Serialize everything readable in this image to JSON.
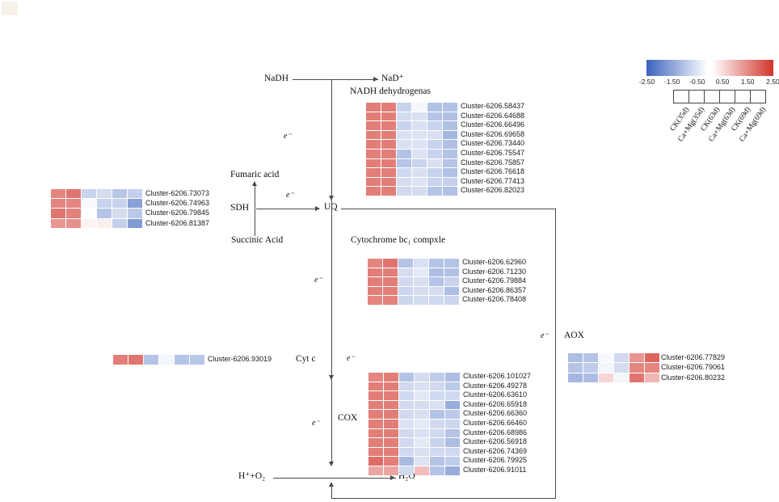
{
  "legend": {
    "ticks": [
      "-2.50",
      "-1.50",
      "-0.50",
      "0.50",
      "1.50",
      "2.50"
    ],
    "columns": [
      "CK(35d)",
      "Ca+Mg(35d)",
      "CK(63d)",
      "Ca+Mg(63d)",
      "CK(69d)",
      "Ca+Mg(69d)"
    ],
    "scale_min": -2.5,
    "scale_max": 2.5,
    "color_low": "#3b62bd",
    "color_mid": "#ffffff",
    "color_high": "#d2342b"
  },
  "pathway": {
    "nadh": "NaDH",
    "nad_plus": "NaD⁺",
    "fumaric_acid": "Fumaric acid",
    "succinic_acid": "Succinic Acid",
    "uq": "UQ",
    "h_plus_o2": "H⁺+O₂",
    "h2o": "H₂O",
    "electron": "e⁻"
  },
  "chart_data": [
    {
      "type": "heatmap",
      "id": "nadh_dehydrogenase",
      "title": "NADH dehydrogenas",
      "vmin": -2.5,
      "vmax": 2.5,
      "columns": [
        "CK(35d)",
        "Ca+Mg(35d)",
        "CK(63d)",
        "Ca+Mg(63d)",
        "CK(69d)",
        "Ca+Mg(69d)"
      ],
      "rows": [
        {
          "label": "Cluster-6206.58437",
          "values": [
            1.6,
            1.6,
            -0.7,
            -0.15,
            -1.0,
            -1.0
          ]
        },
        {
          "label": "Cluster-6206.64688",
          "values": [
            1.6,
            1.6,
            -0.55,
            -0.5,
            -0.95,
            -1.0
          ]
        },
        {
          "label": "Cluster-6206.66496",
          "values": [
            1.6,
            1.6,
            -0.7,
            -0.5,
            -0.7,
            -1.0
          ]
        },
        {
          "label": "Cluster-6206.69658",
          "values": [
            1.6,
            1.6,
            -0.5,
            -0.45,
            -0.5,
            -1.15
          ]
        },
        {
          "label": "Cluster-6206.73440",
          "values": [
            1.6,
            1.6,
            -0.5,
            -0.45,
            -0.7,
            -1.0
          ]
        },
        {
          "label": "Cluster-6206.75547",
          "values": [
            1.6,
            1.6,
            -0.95,
            -0.45,
            -0.7,
            -0.95
          ]
        },
        {
          "label": "Cluster-6206.75857",
          "values": [
            1.6,
            1.6,
            -0.95,
            -0.7,
            -0.5,
            -0.95
          ]
        },
        {
          "label": "Cluster-6206.76618",
          "values": [
            1.6,
            1.6,
            -0.6,
            -0.5,
            -0.7,
            -1.0
          ]
        },
        {
          "label": "Cluster-6206.77413",
          "values": [
            1.6,
            1.6,
            -0.55,
            -0.45,
            -0.7,
            -0.75
          ]
        },
        {
          "label": "Cluster-6206.82023",
          "values": [
            1.6,
            1.6,
            -0.6,
            -0.55,
            -0.95,
            -1.0
          ]
        }
      ]
    },
    {
      "type": "heatmap",
      "id": "sdh",
      "title": "SDH",
      "vmin": -2.5,
      "vmax": 2.5,
      "columns": [
        "CK(35d)",
        "Ca+Mg(35d)",
        "CK(63d)",
        "Ca+Mg(63d)",
        "CK(69d)",
        "Ca+Mg(69d)"
      ],
      "rows": [
        {
          "label": "Cluster-6206.73073",
          "values": [
            1.5,
            1.7,
            -0.7,
            -0.55,
            -0.9,
            -0.75
          ]
        },
        {
          "label": "Cluster-6206.74963",
          "values": [
            1.5,
            1.5,
            -0.1,
            -0.7,
            -0.7,
            -1.5
          ]
        },
        {
          "label": "Cluster-6206.79845",
          "values": [
            1.7,
            1.55,
            0.0,
            -0.95,
            -0.55,
            -0.85
          ]
        },
        {
          "label": "Cluster-6206.81387",
          "values": [
            1.3,
            1.35,
            0.15,
            0.2,
            -0.75,
            -1.6
          ]
        }
      ]
    },
    {
      "type": "heatmap",
      "id": "cytochrome_bc1",
      "title": "Cytochrome bc₁ compxle",
      "vmin": -2.5,
      "vmax": 2.5,
      "columns": [
        "CK(35d)",
        "Ca+Mg(35d)",
        "CK(63d)",
        "Ca+Mg(63d)",
        "CK(69d)",
        "Ca+Mg(69d)"
      ],
      "rows": [
        {
          "label": "Cluster-6206.62960",
          "values": [
            1.5,
            1.7,
            -0.95,
            -0.5,
            -0.95,
            -0.95
          ]
        },
        {
          "label": "Cluster-6206.71230",
          "values": [
            1.6,
            1.6,
            -0.55,
            -0.35,
            -1.05,
            -1.0
          ]
        },
        {
          "label": "Cluster-6206.79884",
          "values": [
            1.6,
            1.6,
            -0.6,
            -0.5,
            -0.95,
            -0.7
          ]
        },
        {
          "label": "Cluster-6206.86357",
          "values": [
            1.6,
            1.6,
            -0.65,
            -0.55,
            -0.55,
            -1.05
          ]
        },
        {
          "label": "Cluster-6206.78408",
          "values": [
            1.5,
            1.55,
            -0.65,
            -0.55,
            -0.6,
            -0.65
          ]
        }
      ]
    },
    {
      "type": "heatmap",
      "id": "cyt_c",
      "title": "Cyt c",
      "vmin": -2.5,
      "vmax": 2.5,
      "columns": [
        "CK(35d)",
        "Ca+Mg(35d)",
        "CK(63d)",
        "Ca+Mg(63d)",
        "CK(69d)",
        "Ca+Mg(69d)"
      ],
      "rows": [
        {
          "label": "Cluster-6206.93019",
          "values": [
            1.6,
            1.7,
            -0.95,
            -0.15,
            -0.95,
            -0.9
          ]
        }
      ]
    },
    {
      "type": "heatmap",
      "id": "cox",
      "title": "COX",
      "vmin": -2.5,
      "vmax": 2.5,
      "columns": [
        "CK(35d)",
        "Ca+Mg(35d)",
        "CK(63d)",
        "Ca+Mg(63d)",
        "CK(69d)",
        "Ca+Mg(69d)"
      ],
      "rows": [
        {
          "label": "Cluster-6206.101027",
          "values": [
            1.5,
            1.6,
            -0.95,
            -0.55,
            -0.8,
            -1.05
          ]
        },
        {
          "label": "Cluster-6206.49278",
          "values": [
            1.6,
            1.6,
            -0.6,
            -0.5,
            -0.6,
            -0.85
          ]
        },
        {
          "label": "Cluster-6206.63610",
          "values": [
            1.6,
            1.6,
            -0.6,
            -0.35,
            -0.6,
            -0.6
          ]
        },
        {
          "label": "Cluster-6206.65918",
          "values": [
            1.6,
            1.6,
            -0.6,
            -0.55,
            -0.5,
            -1.3
          ]
        },
        {
          "label": "Cluster-6206.66360",
          "values": [
            1.6,
            1.6,
            -0.6,
            -0.5,
            -0.95,
            -0.85
          ]
        },
        {
          "label": "Cluster-6206.66460",
          "values": [
            1.6,
            1.6,
            -0.45,
            -0.35,
            -0.6,
            -0.65
          ]
        },
        {
          "label": "Cluster-6206.68986",
          "values": [
            1.6,
            1.6,
            -0.6,
            -0.5,
            -0.6,
            -0.95
          ]
        },
        {
          "label": "Cluster-6206.56918",
          "values": [
            1.6,
            1.6,
            -0.6,
            -0.35,
            -0.7,
            -1.05
          ]
        },
        {
          "label": "Cluster-6206.74369",
          "values": [
            1.6,
            1.6,
            -0.6,
            -0.5,
            -0.6,
            -0.6
          ]
        },
        {
          "label": "Cluster-6206.79925",
          "values": [
            1.8,
            1.6,
            -1.1,
            -0.45,
            -0.95,
            -0.8
          ]
        },
        {
          "label": "Cluster-6206.91011",
          "values": [
            1.1,
            1.1,
            -0.6,
            0.8,
            -0.95,
            -1.3
          ]
        }
      ]
    },
    {
      "type": "heatmap",
      "id": "aox",
      "title": "AOX",
      "vmin": -2.5,
      "vmax": 2.5,
      "columns": [
        "CK(35d)",
        "Ca+Mg(35d)",
        "CK(63d)",
        "Ca+Mg(63d)",
        "CK(69d)",
        "Ca+Mg(69d)"
      ],
      "rows": [
        {
          "label": "Cluster-6206.77829",
          "values": [
            -1.05,
            -0.95,
            -0.1,
            -0.6,
            1.3,
            1.9
          ]
        },
        {
          "label": "Cluster-6206.79061",
          "values": [
            -0.95,
            -0.8,
            -0.15,
            -0.55,
            1.5,
            1.5
          ]
        },
        {
          "label": "Cluster-6206.80232",
          "values": [
            -1.15,
            -1.05,
            0.5,
            -0.15,
            1.7,
            0.9
          ]
        }
      ]
    }
  ]
}
